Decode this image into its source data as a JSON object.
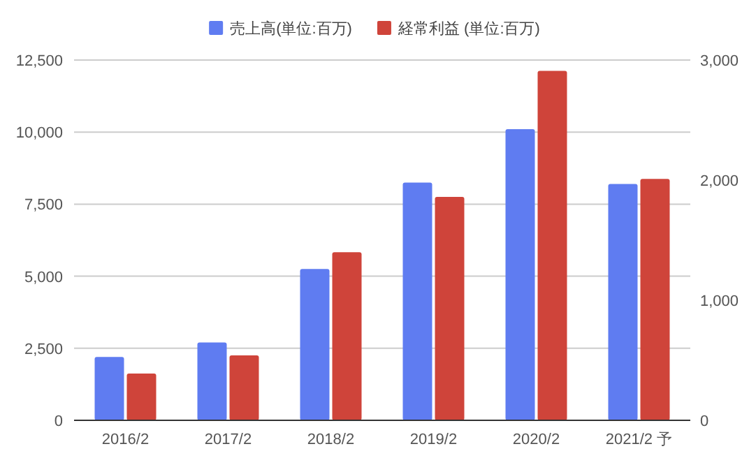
{
  "chart_data": {
    "type": "bar",
    "categories": [
      "2016/2",
      "2017/2",
      "2018/2",
      "2019/2",
      "2020/2",
      "2021/2 予"
    ],
    "series": [
      {
        "name": "売上高(単位:百万)",
        "color": "#5f7cf1",
        "values": [
          2200,
          2700,
          5250,
          8250,
          10100,
          8200
        ]
      },
      {
        "name": "経常利益 (単位:百万)",
        "color": "#cf443a",
        "axis": "y2",
        "values": [
          390,
          540,
          1400,
          1860,
          2910,
          2010
        ]
      }
    ],
    "ylim": [
      0,
      12500
    ],
    "yticks": [
      0,
      {
        "value": 2500,
        "label": "2,500"
      },
      {
        "value": 5000,
        "label": "5,000"
      },
      {
        "value": 7500,
        "label": "7,500"
      },
      {
        "value": 10000,
        "label": "10,000"
      },
      {
        "value": 12500,
        "label": "12,500"
      }
    ],
    "y2lim": [
      0,
      3000
    ],
    "y2ticks": [
      0,
      {
        "value": 1000,
        "label": "1,000"
      },
      {
        "value": 2000,
        "label": "2,000"
      },
      {
        "value": 3000,
        "label": "3,000"
      }
    ],
    "grid": "y",
    "legend": "top"
  }
}
